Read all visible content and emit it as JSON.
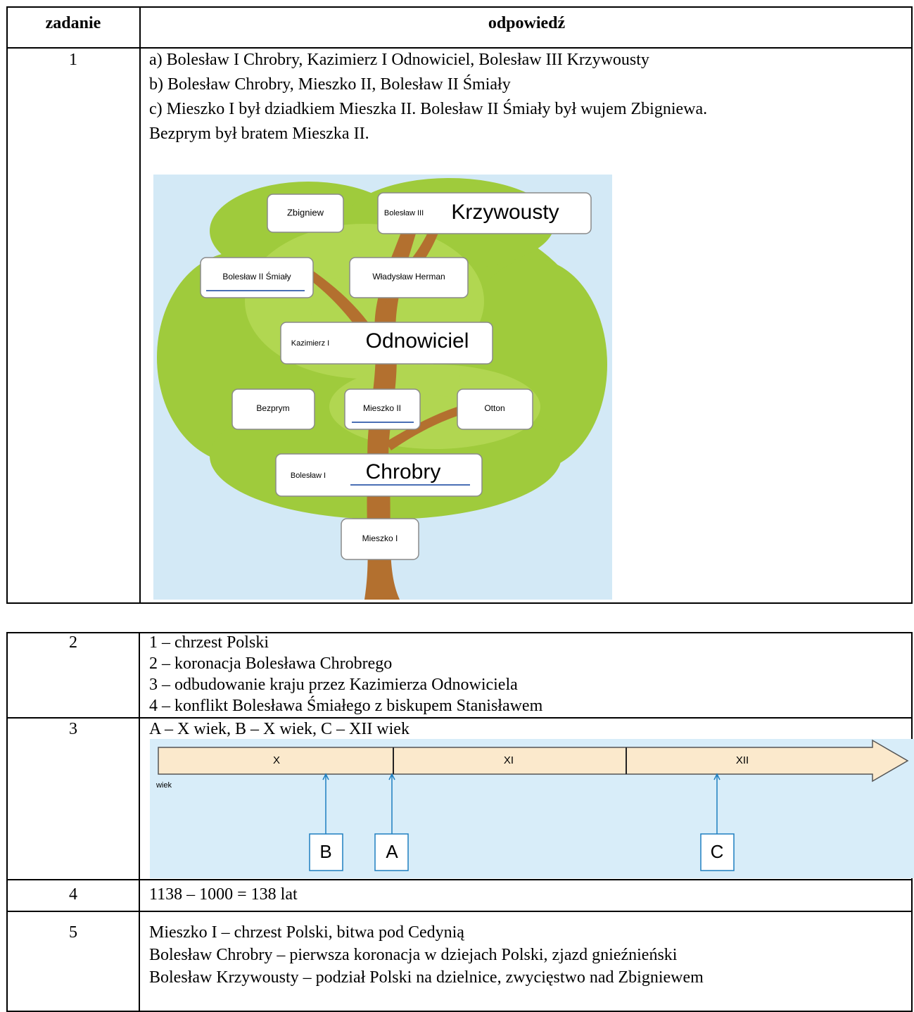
{
  "table1": {
    "header": [
      "zadanie",
      "odpowiedź"
    ],
    "rows": [
      {
        "number": "1",
        "lines": [
          "a) Bolesław I Chrobry, Kazimierz I Odnowiciel, Bolesław III Krzywousty",
          "b) Bolesław Chrobry, Mieszko II, Bolesław II Śmiały",
          "c) Mieszko I był dziadkiem Mieszka II. Bolesław II Śmiały był wujem Zbigniewa.",
          "Bezprym był bratem Mieszka II."
        ]
      }
    ]
  },
  "tree": {
    "labels": [
      "Zbigniew",
      "Bolesław III",
      "Krzywousty",
      "Bolesław II Śmiały",
      "Władysław Herman",
      "Kazimierz I",
      "Odnowiciel",
      "Bezprym",
      "Mieszko II",
      "Otton",
      "Bolesław I",
      "Chrobry",
      "Mieszko I"
    ]
  },
  "table2": {
    "rows": [
      {
        "number": "2",
        "lines": [
          "1 – chrzest Polski",
          "2 – koronacja Bolesława Chrobrego",
          "3 – odbudowanie kraju przez Kazimierza Odnowiciela",
          "4 – konflikt Bolesława Śmiałego z biskupem Stanisławem"
        ]
      },
      {
        "number": "3",
        "lines": [
          "A – X wiek, B – X wiek, C – XII wiek"
        ]
      },
      {
        "number": "4",
        "lines": [
          "1138 – 1000 = 138 lat"
        ]
      },
      {
        "number": "5",
        "lines": [
          "Mieszko I – chrzest Polski, bitwa pod Cedynią",
          "Bolesław Chrobry – pierwsza koronacja w dziejach Polski, zjazd gnieźnieński",
          "Bolesław Krzywousty – podział Polski na dzielnice, zwycięstwo nad Zbigniewem"
        ]
      }
    ]
  },
  "timeline": {
    "centuries": [
      "X",
      "XI",
      "XII"
    ],
    "axis_label": "wiek",
    "markers": [
      "B",
      "A",
      "C"
    ]
  }
}
